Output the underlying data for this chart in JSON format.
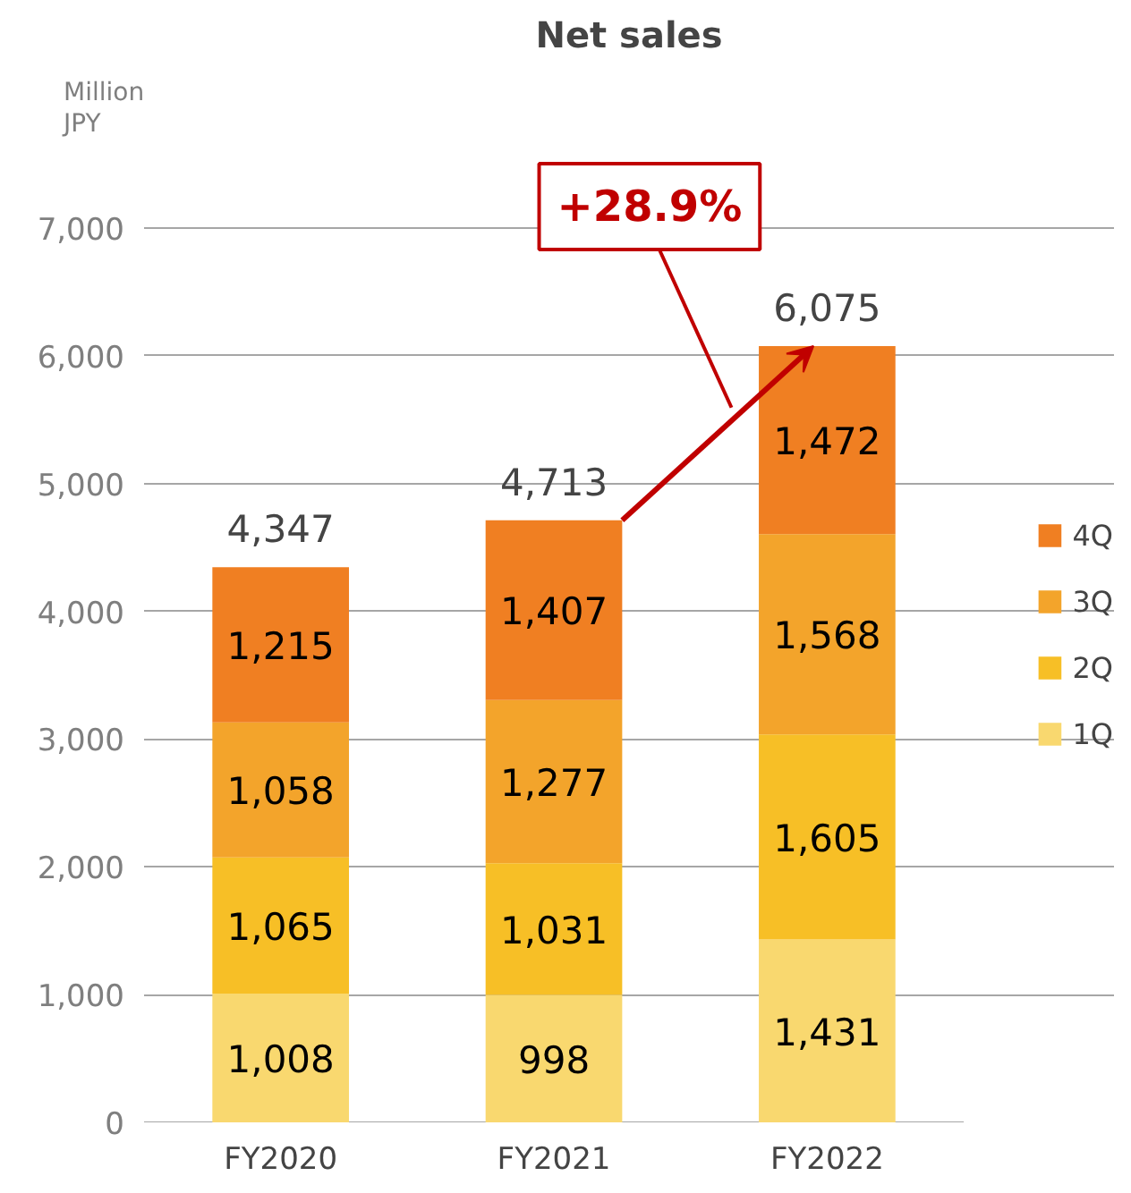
{
  "chart_data": {
    "type": "bar",
    "title": "Net sales",
    "ylabel": "Million\nJPY",
    "categories": [
      "FY2020",
      "FY2021",
      "FY2022"
    ],
    "stacked": true,
    "series": [
      {
        "name": "1Q",
        "color": "#f9d86f",
        "values": [
          1008,
          998,
          1431
        ],
        "value_labels": [
          "1,008",
          "998",
          "1,431"
        ]
      },
      {
        "name": "2Q",
        "color": "#f7bf26",
        "values": [
          1065,
          1031,
          1605
        ],
        "value_labels": [
          "1,065",
          "1,031",
          "1,605"
        ]
      },
      {
        "name": "3Q",
        "color": "#f3a42b",
        "values": [
          1058,
          1277,
          1568
        ],
        "value_labels": [
          "1,058",
          "1,277",
          "1,568"
        ]
      },
      {
        "name": "4Q",
        "color": "#f07f22",
        "values": [
          1215,
          1407,
          1472
        ],
        "value_labels": [
          "1,215",
          "1,407",
          "1,472"
        ]
      }
    ],
    "totals": [
      "4,347",
      "4,713",
      "6,075"
    ],
    "ylim": [
      0,
      7000
    ],
    "yticks": [
      0,
      {
        "value": 1000,
        "label": "1,000"
      },
      {
        "value": 2000,
        "label": "2,000"
      },
      {
        "value": 3000,
        "label": "3,000"
      },
      {
        "value": 4000,
        "label": "4,000"
      },
      {
        "value": 5000,
        "label": "5,000"
      },
      {
        "value": 6000,
        "label": "6,000"
      },
      {
        "value": 7000,
        "label": "7,000"
      }
    ],
    "grid": "y",
    "legend": "right",
    "annotations": [
      "+28.9%"
    ]
  }
}
